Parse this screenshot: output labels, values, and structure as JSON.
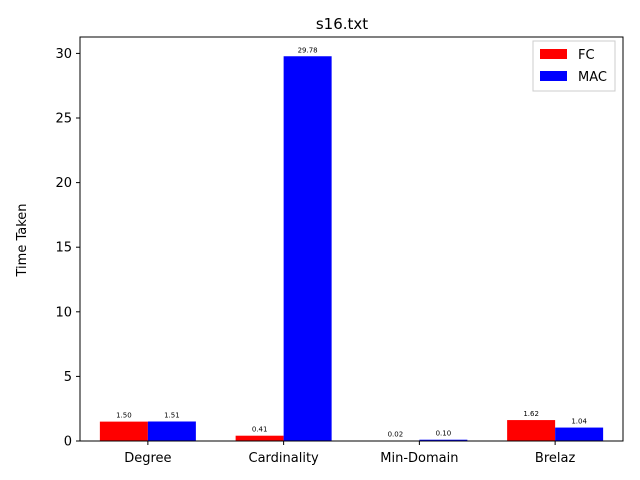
{
  "chart_data": {
    "type": "bar",
    "title": "s16.txt",
    "xlabel": "",
    "ylabel": "Time Taken",
    "categories": [
      "Degree",
      "Cardinality",
      "Min-Domain",
      "Brelaz"
    ],
    "series": [
      {
        "name": "FC",
        "color": "#ff0000",
        "values": [
          1.5,
          0.41,
          0.02,
          1.62
        ],
        "labels": [
          "1.50",
          "0.41",
          "0.02",
          "1.62"
        ]
      },
      {
        "name": "MAC",
        "color": "#0000ff",
        "values": [
          1.51,
          29.78,
          0.1,
          1.04
        ],
        "labels": [
          "1.51",
          "29.78",
          "0.10",
          "1.04"
        ]
      }
    ],
    "ylim": [
      0,
      31.27
    ],
    "yticks": [
      0,
      5,
      10,
      15,
      20,
      25,
      30
    ],
    "ytick_labels": [
      "0",
      "5",
      "10",
      "15",
      "20",
      "25",
      "30"
    ],
    "grid": false,
    "legend_position": "top-right"
  }
}
